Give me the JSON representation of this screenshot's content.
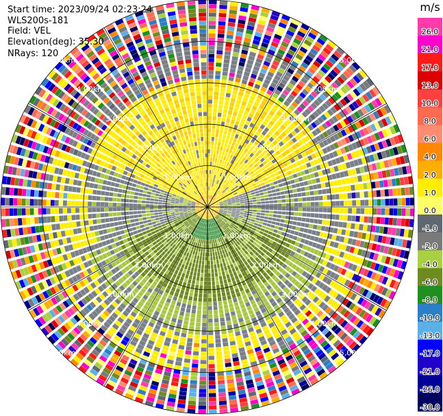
{
  "header": {
    "start_time": "Start time: 2023/09/24 02:23:24",
    "instrument": "WLS200s-181",
    "field": "Field: VEL",
    "elevation": "Elevation(deg): 35.30",
    "nrays": "NRays: 120"
  },
  "chart_data": {
    "type": "heatmap",
    "projection": "polar PPI",
    "range_rings_km": [
      1.0,
      2.0,
      3.0,
      4.0,
      5.0
    ],
    "ring_labels": [
      "1.00km",
      "2.00km",
      "3.00km",
      "4.00km",
      "5.00km"
    ],
    "max_range_km": 5.0,
    "nrays": 120,
    "colorbar": {
      "unit": "m/s",
      "tick_labels": [
        "26.0",
        "21.0",
        "17.0",
        "13.0",
        "10.0",
        "8.0",
        "6.0",
        "4.0",
        "2.0",
        "1.0",
        "0.0",
        "-1.0",
        "-2.0",
        "-4.0",
        "-6.0",
        "-8.0",
        "-10.0",
        "-13.0",
        "-17.0",
        "-21.0",
        "-26.0",
        "-30.0"
      ],
      "colors": [
        "#ff3aaa",
        "#ff00cc",
        "#ff1a1a",
        "#dd0000",
        "#ff4040",
        "#ff6a50",
        "#ff8c70",
        "#ff8800",
        "#ffae00",
        "#ffee00",
        "#ffff66",
        "#5f6870",
        "#7a7a7a",
        "#a8d040",
        "#6e8c1e",
        "#1f8f1f",
        "#2a7fc8",
        "#5ab0e8",
        "#0000ff",
        "#2200cc",
        "#000099",
        "#000060"
      ]
    },
    "colors": {
      "near_receding": "#ffee00",
      "near_zero": "#7a8088",
      "near_approaching": "#a8c840",
      "approaching_strong": "#6e8c1e",
      "center_green": "#2a8a30"
    }
  }
}
